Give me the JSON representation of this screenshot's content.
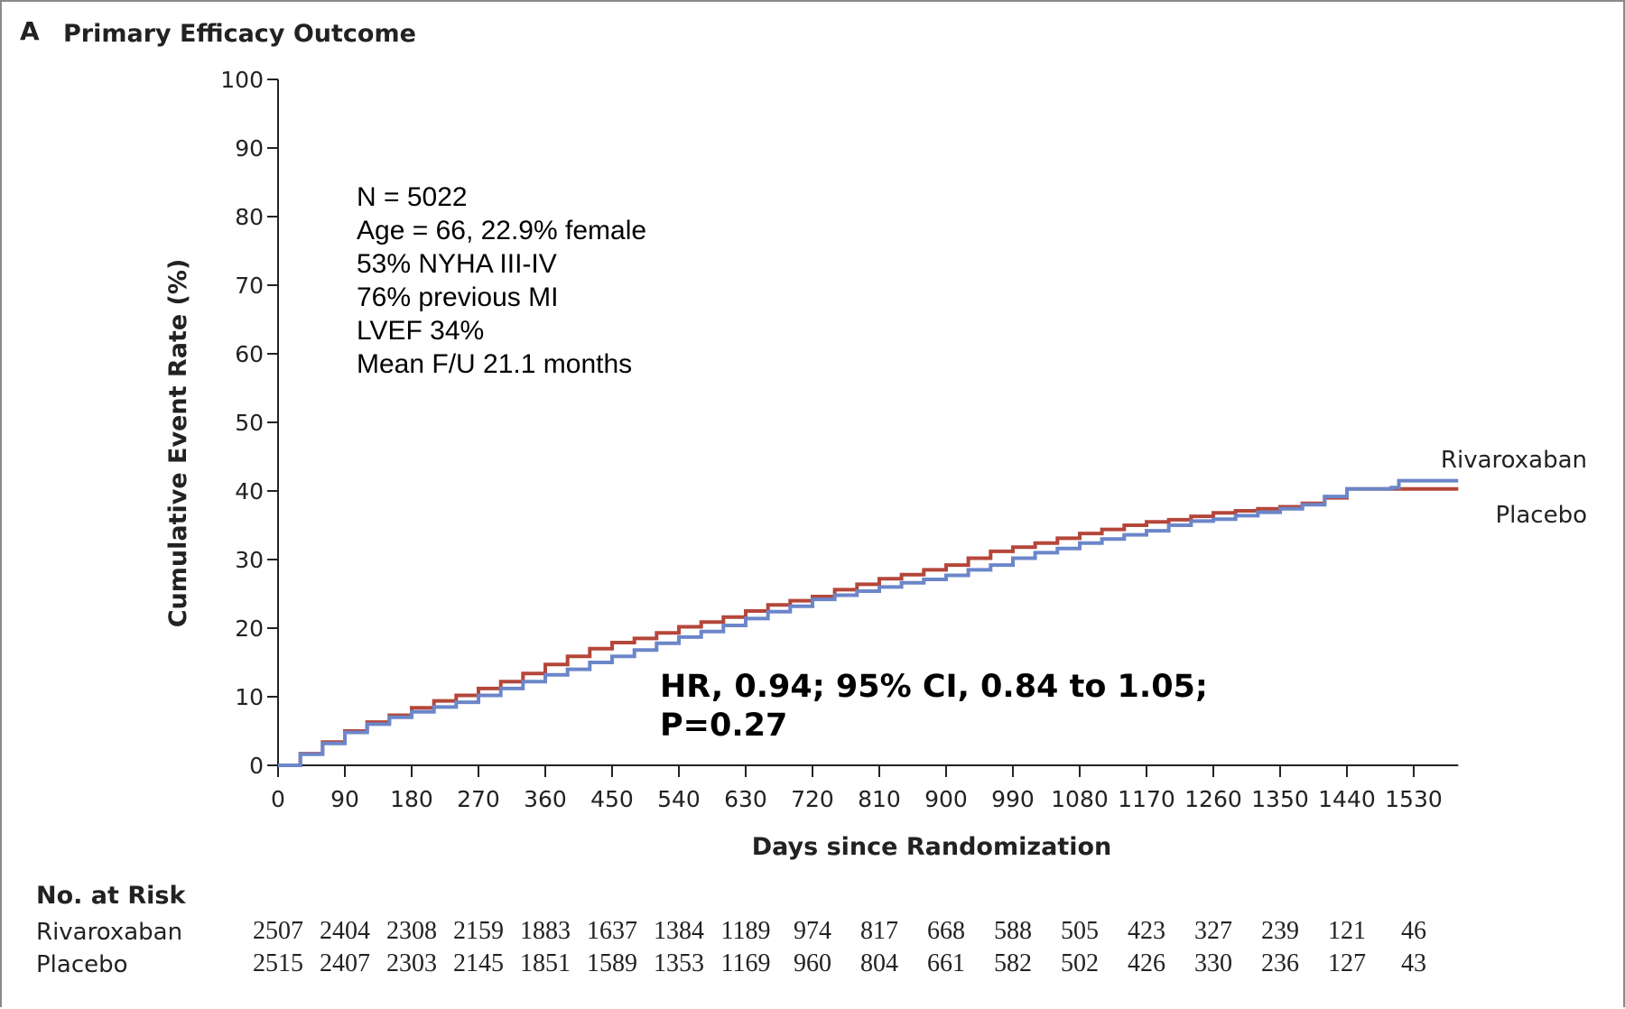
{
  "panel": {
    "letter": "A",
    "title": "Primary Efficacy Outcome"
  },
  "stats_text": [
    "N = 5022",
    "Age = 66, 22.9% female",
    "53% NYHA III-IV",
    "76% previous MI",
    "LVEF 34%",
    "Mean F/U 21.1 months"
  ],
  "hr_text": [
    "HR, 0.94; 95% CI, 0.84 to 1.05;",
    "P=0.27"
  ],
  "risk_table": {
    "title": "No. at Risk",
    "rows": [
      {
        "label": "Rivaroxaban",
        "values": [
          "2507",
          "2404",
          "2308",
          "2159",
          "1883",
          "1637",
          "1384",
          "1189",
          "974",
          "817",
          "668",
          "588",
          "505",
          "423",
          "327",
          "239",
          "121",
          "46"
        ]
      },
      {
        "label": "Placebo",
        "values": [
          "2515",
          "2407",
          "2303",
          "2145",
          "1851",
          "1589",
          "1353",
          "1169",
          "960",
          "804",
          "661",
          "582",
          "502",
          "426",
          "330",
          "236",
          "127",
          "43"
        ]
      }
    ]
  },
  "chart_data": {
    "type": "line",
    "xlabel": "Days since Randomization",
    "ylabel": "Cumulative Event Rate (%)",
    "xlim": [
      0,
      1590
    ],
    "ylim": [
      0,
      100
    ],
    "x_ticks": [
      0,
      90,
      180,
      270,
      360,
      450,
      540,
      630,
      720,
      810,
      900,
      990,
      1080,
      1170,
      1260,
      1350,
      1440,
      1530
    ],
    "y_ticks": [
      0,
      10,
      20,
      30,
      40,
      50,
      60,
      70,
      80,
      90,
      100
    ],
    "grid": false,
    "series": [
      {
        "name": "Rivaroxaban",
        "color": "#6b86c9",
        "points": [
          [
            0,
            0
          ],
          [
            30,
            1.6
          ],
          [
            60,
            3.2
          ],
          [
            90,
            4.8
          ],
          [
            120,
            6.0
          ],
          [
            150,
            7.0
          ],
          [
            180,
            7.8
          ],
          [
            210,
            8.5
          ],
          [
            240,
            9.2
          ],
          [
            270,
            10.2
          ],
          [
            300,
            11.2
          ],
          [
            330,
            12.2
          ],
          [
            360,
            13.2
          ],
          [
            390,
            14.0
          ],
          [
            420,
            15.0
          ],
          [
            450,
            15.9
          ],
          [
            480,
            16.8
          ],
          [
            510,
            17.8
          ],
          [
            540,
            18.7
          ],
          [
            570,
            19.5
          ],
          [
            600,
            20.4
          ],
          [
            630,
            21.4
          ],
          [
            660,
            22.4
          ],
          [
            690,
            23.2
          ],
          [
            720,
            24.2
          ],
          [
            750,
            24.8
          ],
          [
            780,
            25.4
          ],
          [
            810,
            26.0
          ],
          [
            840,
            26.6
          ],
          [
            870,
            27.1
          ],
          [
            900,
            27.7
          ],
          [
            930,
            28.5
          ],
          [
            960,
            29.2
          ],
          [
            990,
            30.2
          ],
          [
            1020,
            31.0
          ],
          [
            1050,
            31.6
          ],
          [
            1080,
            32.4
          ],
          [
            1110,
            33.0
          ],
          [
            1140,
            33.6
          ],
          [
            1170,
            34.2
          ],
          [
            1200,
            35.0
          ],
          [
            1230,
            35.6
          ],
          [
            1260,
            35.9
          ],
          [
            1290,
            36.4
          ],
          [
            1320,
            36.9
          ],
          [
            1350,
            37.4
          ],
          [
            1380,
            38.0
          ],
          [
            1410,
            39.2
          ],
          [
            1440,
            40.3
          ],
          [
            1470,
            40.3
          ],
          [
            1500,
            40.5
          ],
          [
            1510,
            41.5
          ],
          [
            1590,
            41.5
          ]
        ]
      },
      {
        "name": "Placebo",
        "color": "#b5463a",
        "points": [
          [
            0,
            0
          ],
          [
            30,
            1.7
          ],
          [
            60,
            3.4
          ],
          [
            90,
            5.0
          ],
          [
            120,
            6.3
          ],
          [
            150,
            7.3
          ],
          [
            180,
            8.4
          ],
          [
            210,
            9.4
          ],
          [
            240,
            10.2
          ],
          [
            270,
            11.2
          ],
          [
            300,
            12.2
          ],
          [
            330,
            13.4
          ],
          [
            360,
            14.7
          ],
          [
            390,
            15.9
          ],
          [
            420,
            17.0
          ],
          [
            450,
            17.9
          ],
          [
            480,
            18.5
          ],
          [
            510,
            19.3
          ],
          [
            540,
            20.2
          ],
          [
            570,
            20.9
          ],
          [
            600,
            21.6
          ],
          [
            630,
            22.5
          ],
          [
            660,
            23.4
          ],
          [
            690,
            24.0
          ],
          [
            720,
            24.6
          ],
          [
            750,
            25.6
          ],
          [
            780,
            26.4
          ],
          [
            810,
            27.2
          ],
          [
            840,
            27.8
          ],
          [
            870,
            28.5
          ],
          [
            900,
            29.2
          ],
          [
            930,
            30.2
          ],
          [
            960,
            31.2
          ],
          [
            990,
            31.8
          ],
          [
            1020,
            32.4
          ],
          [
            1050,
            33.1
          ],
          [
            1080,
            33.8
          ],
          [
            1110,
            34.4
          ],
          [
            1140,
            35.0
          ],
          [
            1170,
            35.5
          ],
          [
            1200,
            35.8
          ],
          [
            1230,
            36.3
          ],
          [
            1260,
            36.8
          ],
          [
            1290,
            37.1
          ],
          [
            1320,
            37.4
          ],
          [
            1350,
            37.7
          ],
          [
            1380,
            38.2
          ],
          [
            1410,
            39.0
          ],
          [
            1440,
            40.3
          ],
          [
            1590,
            40.3
          ]
        ]
      }
    ]
  }
}
